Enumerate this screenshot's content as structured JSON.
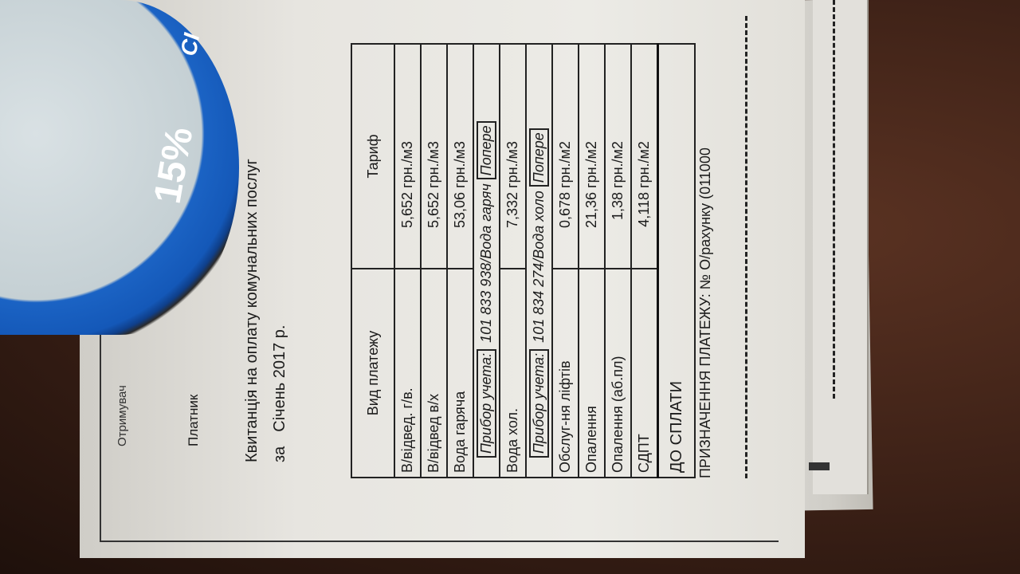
{
  "document": {
    "recipient_label": "Отримувач",
    "payer_label": "Платник",
    "title": "Квитанція на оплату комунальних послуг",
    "period_prefix": "за",
    "period": "Січень 2017 р.",
    "table": {
      "headers": [
        "Вид платежу",
        "Тариф"
      ],
      "rows": [
        {
          "type": "item",
          "label": "В/відвед. г/в.",
          "tariff": "5,652",
          "unit": "грн./м3"
        },
        {
          "type": "item",
          "label": "В/відвед в/х",
          "tariff": "5,652",
          "unit": "грн./м3"
        },
        {
          "type": "item",
          "label": "Вода гаряча",
          "tariff": "53,06",
          "unit": "грн./м3"
        },
        {
          "type": "meter",
          "label": "Прибор учета:",
          "number": "101 833 938/Вода гаряч",
          "extra": "Попере"
        },
        {
          "type": "item",
          "label": "Вода хол.",
          "tariff": "7,332",
          "unit": "грн./м3"
        },
        {
          "type": "meter",
          "label": "Прибор учета:",
          "number": "101 834 274/Вода холо",
          "extra": "Попере"
        },
        {
          "type": "item",
          "label": "Обслуг-ня ліфтів",
          "tariff": "0,678",
          "unit": "грн./м2"
        },
        {
          "type": "item",
          "label": "Опалення",
          "tariff": "21,36",
          "unit": "грн./м2"
        },
        {
          "type": "item",
          "label": "Опалення (аб.пл)",
          "tariff": "1,38",
          "unit": "грн./м2"
        },
        {
          "type": "item",
          "label": "СДПТ",
          "tariff": "4,118",
          "unit": "грн./м2"
        }
      ],
      "total_label": "ДО СПЛАТИ"
    },
    "purpose": "ПРИЗНАЧЕННЯ ПЛАТЕЖУ: № О/рахунку (011000"
  },
  "sticker": {
    "text": "15%",
    "label": "СІ",
    "color": "#1458b8"
  }
}
